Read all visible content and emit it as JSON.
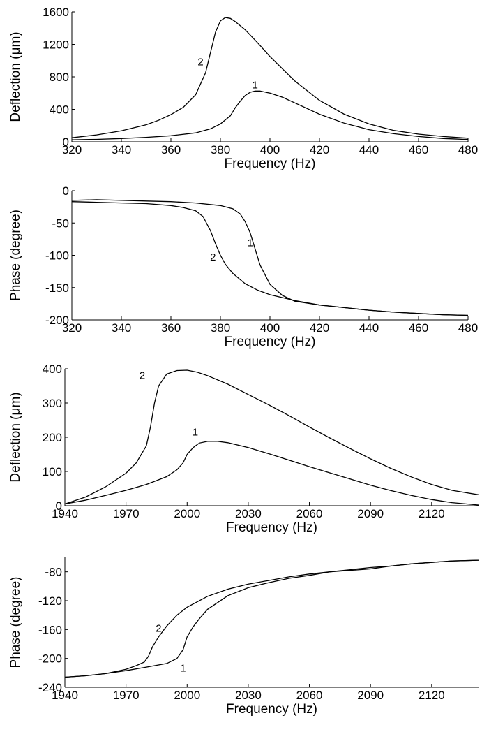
{
  "chart_data": [
    {
      "type": "line",
      "xlabel": "Frequency (Hz)",
      "ylabel": "Deflection (μm)",
      "xlim": [
        320,
        480
      ],
      "ylim": [
        0,
        1600
      ],
      "xticks": [
        320,
        340,
        360,
        380,
        400,
        420,
        440,
        460,
        480
      ],
      "yticks": [
        0,
        400,
        800,
        1200,
        1600
      ],
      "grid": false,
      "series": [
        {
          "name": "1",
          "label_at": [
            394,
            660
          ],
          "x": [
            320,
            330,
            340,
            350,
            360,
            370,
            376,
            380,
            384,
            386,
            388,
            390,
            392,
            394,
            396,
            400,
            405,
            410,
            420,
            430,
            440,
            450,
            460,
            470,
            480
          ],
          "y": [
            25,
            30,
            40,
            55,
            75,
            110,
            160,
            220,
            320,
            420,
            500,
            570,
            610,
            625,
            625,
            600,
            550,
            480,
            340,
            230,
            150,
            100,
            65,
            40,
            28
          ]
        },
        {
          "name": "2",
          "label_at": [
            372,
            940
          ],
          "x": [
            320,
            330,
            340,
            350,
            355,
            360,
            365,
            370,
            374,
            376,
            378,
            380,
            382,
            384,
            386,
            390,
            395,
            400,
            410,
            420,
            430,
            440,
            450,
            460,
            470,
            480
          ],
          "y": [
            50,
            85,
            135,
            210,
            265,
            335,
            425,
            580,
            850,
            1100,
            1350,
            1490,
            1530,
            1520,
            1480,
            1380,
            1220,
            1050,
            750,
            510,
            340,
            220,
            140,
            95,
            65,
            45
          ]
        }
      ]
    },
    {
      "type": "line",
      "xlabel": "Frequency (Hz)",
      "ylabel": "Phase (degree)",
      "xlim": [
        320,
        480
      ],
      "ylim": [
        -200,
        0
      ],
      "xticks": [
        320,
        340,
        360,
        380,
        400,
        420,
        440,
        460,
        480
      ],
      "yticks": [
        -200,
        -150,
        -100,
        -50,
        0
      ],
      "grid": false,
      "series": [
        {
          "name": "1",
          "label_at": [
            392,
            -86
          ],
          "x": [
            320,
            330,
            340,
            350,
            360,
            370,
            380,
            385,
            388,
            390,
            392,
            394,
            396,
            400,
            405,
            410,
            420,
            430,
            440,
            450,
            460,
            470,
            480
          ],
          "y": [
            -15,
            -14,
            -15,
            -16,
            -17,
            -19,
            -23,
            -28,
            -36,
            -48,
            -65,
            -90,
            -115,
            -145,
            -162,
            -171,
            -177,
            -181,
            -185,
            -188,
            -190,
            -192,
            -193
          ]
        },
        {
          "name": "2",
          "label_at": [
            377,
            -108
          ],
          "x": [
            320,
            330,
            340,
            350,
            360,
            365,
            370,
            373,
            376,
            378,
            380,
            382,
            385,
            390,
            395,
            400,
            410,
            420,
            430,
            440,
            450,
            460,
            470,
            480
          ],
          "y": [
            -17,
            -18,
            -19,
            -20,
            -23,
            -26,
            -31,
            -40,
            -62,
            -82,
            -100,
            -114,
            -128,
            -144,
            -154,
            -161,
            -170,
            -177,
            -181,
            -185,
            -188,
            -190,
            -192,
            -193
          ]
        }
      ]
    },
    {
      "type": "line",
      "xlabel": "Frequency (Hz)",
      "ylabel": "Deflection (μm)",
      "xlim": [
        1940,
        2143
      ],
      "ylim": [
        0,
        400
      ],
      "xticks": [
        1940,
        1970,
        2000,
        2030,
        2060,
        2090,
        2120
      ],
      "yticks": [
        0,
        100,
        200,
        300,
        400
      ],
      "grid": false,
      "series": [
        {
          "name": "1",
          "label_at": [
            2004,
            205
          ],
          "x": [
            1940,
            1950,
            1960,
            1970,
            1980,
            1990,
            1995,
            1998,
            2000,
            2003,
            2006,
            2010,
            2015,
            2020,
            2030,
            2040,
            2050,
            2060,
            2070,
            2080,
            2090,
            2100,
            2110,
            2120,
            2130,
            2143
          ],
          "y": [
            5,
            16,
            30,
            45,
            62,
            85,
            105,
            125,
            150,
            170,
            183,
            188,
            188,
            184,
            170,
            152,
            133,
            114,
            96,
            78,
            60,
            44,
            30,
            18,
            9,
            2
          ]
        },
        {
          "name": "2",
          "label_at": [
            1978,
            370
          ],
          "x": [
            1940,
            1950,
            1960,
            1970,
            1975,
            1980,
            1982,
            1984,
            1986,
            1990,
            1995,
            2000,
            2005,
            2010,
            2020,
            2030,
            2040,
            2050,
            2060,
            2070,
            2080,
            2090,
            2100,
            2110,
            2120,
            2130,
            2143
          ],
          "y": [
            5,
            25,
            55,
            95,
            125,
            175,
            230,
            300,
            350,
            385,
            395,
            396,
            390,
            380,
            355,
            325,
            295,
            263,
            230,
            198,
            167,
            137,
            109,
            84,
            62,
            45,
            32
          ]
        }
      ]
    },
    {
      "type": "line",
      "xlabel": "Frequency (Hz)",
      "ylabel": "Phase (degree)",
      "xlim": [
        1940,
        2143
      ],
      "ylim": [
        -240,
        -60
      ],
      "xticks": [
        1940,
        1970,
        2000,
        2030,
        2060,
        2090,
        2120
      ],
      "yticks": [
        -240,
        -200,
        -160,
        -120,
        -80
      ],
      "grid": false,
      "series": [
        {
          "name": "1",
          "label_at": [
            1998,
            -218
          ],
          "x": [
            1940,
            1950,
            1960,
            1970,
            1980,
            1990,
            1995,
            1998,
            2000,
            2003,
            2006,
            2010,
            2020,
            2030,
            2040,
            2050,
            2060,
            2070,
            2080,
            2090,
            2100,
            2110,
            2120,
            2130,
            2143
          ],
          "y": [
            -226,
            -224,
            -221,
            -217,
            -212,
            -207,
            -200,
            -188,
            -170,
            -156,
            -145,
            -132,
            -113,
            -102,
            -95,
            -89,
            -85,
            -80,
            -78,
            -76,
            -72,
            -69,
            -67,
            -65,
            -64
          ]
        },
        {
          "name": "2",
          "label_at": [
            1986,
            -163
          ],
          "x": [
            1940,
            1950,
            1960,
            1970,
            1975,
            1979,
            1981,
            1983,
            1986,
            1990,
            1995,
            2000,
            2010,
            2020,
            2030,
            2040,
            2050,
            2060,
            2070,
            2080,
            2090,
            2100,
            2110,
            2120,
            2130,
            2143
          ],
          "y": [
            -226,
            -224,
            -221,
            -215,
            -210,
            -205,
            -197,
            -184,
            -170,
            -155,
            -140,
            -129,
            -114,
            -104,
            -97,
            -92,
            -87,
            -83,
            -80,
            -77,
            -74,
            -72,
            -69,
            -67,
            -65,
            -64
          ]
        }
      ]
    }
  ]
}
